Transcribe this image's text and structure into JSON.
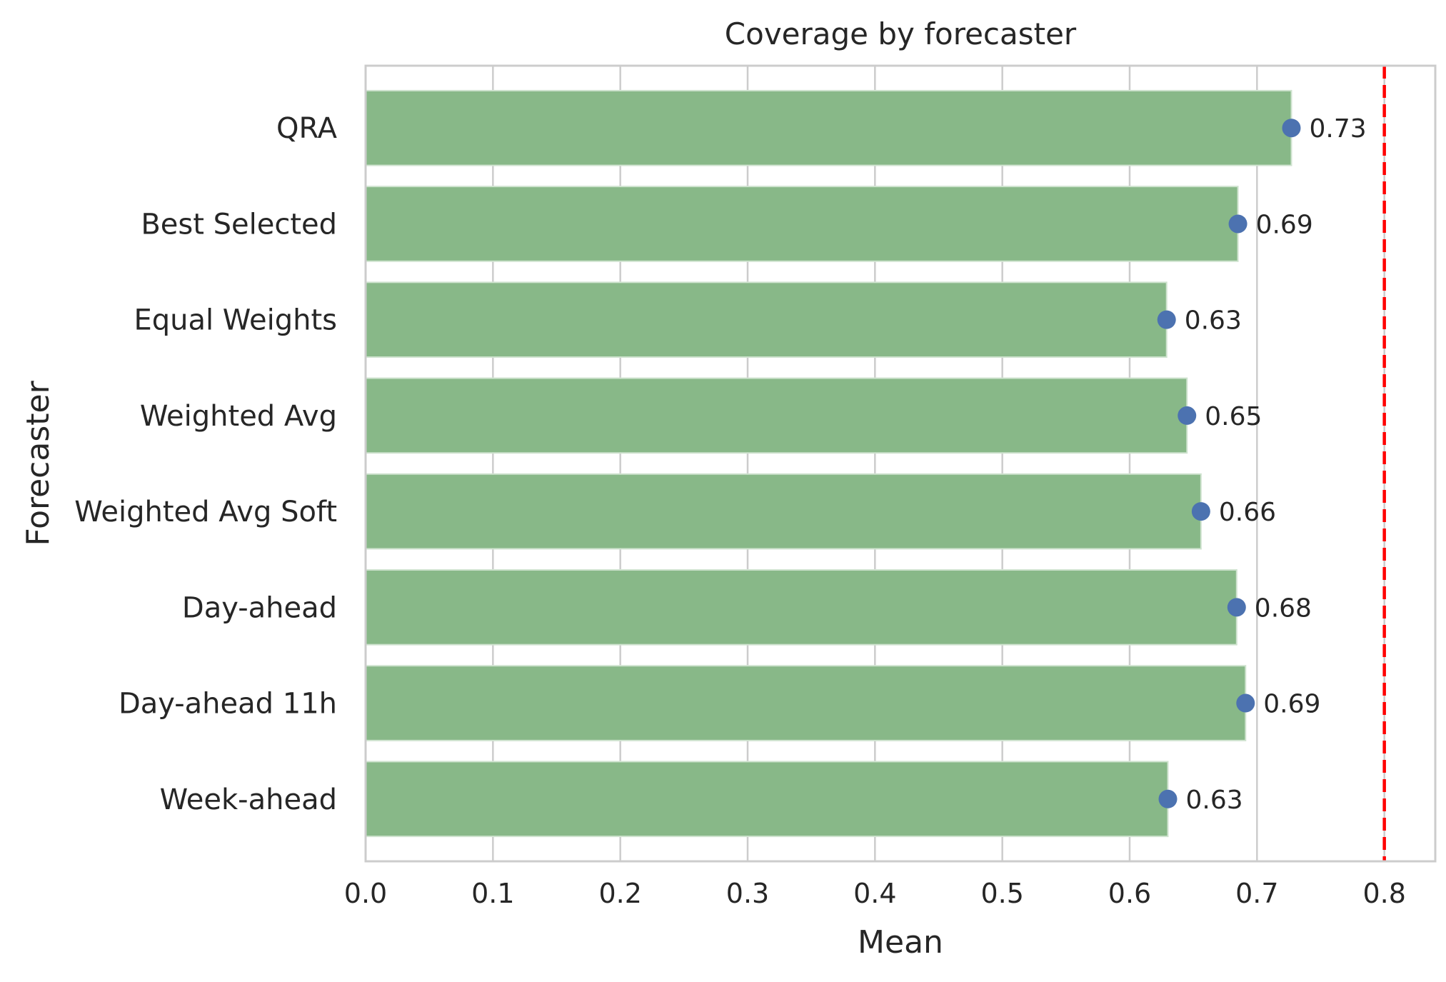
{
  "chart_data": {
    "type": "bar",
    "orientation": "horizontal",
    "title": "Coverage by forecaster",
    "xlabel": "Mean",
    "ylabel": "Forecaster",
    "xlim": [
      0,
      0.84
    ],
    "xticks": [
      0.0,
      0.1,
      0.2,
      0.3,
      0.4,
      0.5,
      0.6,
      0.7,
      0.8
    ],
    "xtick_labels": [
      "0.0",
      "0.1",
      "0.2",
      "0.3",
      "0.4",
      "0.5",
      "0.6",
      "0.7",
      "0.8"
    ],
    "grid": true,
    "categories": [
      "QRA",
      "Best Selected",
      "Equal Weights",
      "Weighted Avg",
      "Weighted Avg Soft",
      "Day-ahead",
      "Day-ahead 11h",
      "Week-ahead"
    ],
    "values": [
      0.727,
      0.685,
      0.629,
      0.645,
      0.656,
      0.684,
      0.691,
      0.63
    ],
    "value_labels": [
      "0.73",
      "0.69",
      "0.63",
      "0.65",
      "0.66",
      "0.68",
      "0.69",
      "0.63"
    ],
    "reference_line": {
      "x": 0.8,
      "style": "dashed",
      "color": "#ff0000"
    },
    "colors": {
      "bar": "#88b888",
      "bar_edge": "#cfe3cf",
      "marker": "#4c72b0",
      "grid": "#cccccc",
      "axes_edge": "#cccccc"
    }
  }
}
